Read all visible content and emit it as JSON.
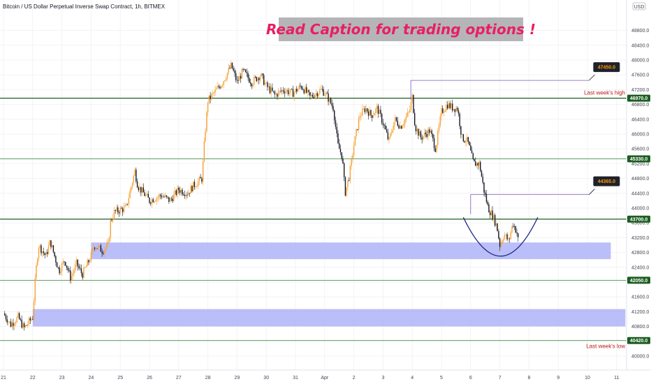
{
  "header": {
    "symbol_title": "Bitcoin / US Dollar Perpetual Inverse Swap Contract, 1h, BITMEX",
    "caption": "Read Caption for trading options !",
    "currency": "USD"
  },
  "chart_data": {
    "type": "candlestick",
    "title": "Bitcoin / US Dollar Perpetual Inverse Swap Contract, 1h, BITMEX",
    "ylim": [
      40000,
      49000
    ],
    "y_ticks": [
      40000,
      40400,
      40800,
      41200,
      41600,
      42000,
      42400,
      42800,
      43200,
      43600,
      44000,
      44400,
      44800,
      45200,
      45600,
      46000,
      46400,
      46800,
      47200,
      47600,
      48000,
      48400,
      48800
    ],
    "x_ticks": [
      "21",
      "22",
      "23",
      "24",
      "25",
      "26",
      "27",
      "28",
      "29",
      "30",
      "31",
      "Apr",
      "2",
      "3",
      "4",
      "5",
      "6",
      "7",
      "8",
      "9",
      "10",
      "11"
    ],
    "x_tick_days": [
      0,
      1,
      2,
      3,
      4,
      5,
      6,
      7,
      8,
      9,
      10,
      11,
      12,
      13,
      14,
      15,
      16,
      17,
      18,
      19,
      20,
      21
    ],
    "price_path": [
      {
        "day": 0.0,
        "price": 41150
      },
      {
        "day": 0.25,
        "price": 40850
      },
      {
        "day": 0.5,
        "price": 41050
      },
      {
        "day": 0.7,
        "price": 40750
      },
      {
        "day": 1.0,
        "price": 41050
      },
      {
        "day": 1.1,
        "price": 42200
      },
      {
        "day": 1.2,
        "price": 43000
      },
      {
        "day": 1.45,
        "price": 42700
      },
      {
        "day": 1.6,
        "price": 43100
      },
      {
        "day": 1.9,
        "price": 42300
      },
      {
        "day": 2.1,
        "price": 42600
      },
      {
        "day": 2.3,
        "price": 42100
      },
      {
        "day": 2.5,
        "price": 42500
      },
      {
        "day": 2.7,
        "price": 42200
      },
      {
        "day": 3.0,
        "price": 42700
      },
      {
        "day": 3.1,
        "price": 43000
      },
      {
        "day": 3.4,
        "price": 42850
      },
      {
        "day": 3.6,
        "price": 43000
      },
      {
        "day": 3.65,
        "price": 43600
      },
      {
        "day": 3.8,
        "price": 43900
      },
      {
        "day": 4.2,
        "price": 44000
      },
      {
        "day": 4.5,
        "price": 45000
      },
      {
        "day": 4.6,
        "price": 44600
      },
      {
        "day": 5.0,
        "price": 44200
      },
      {
        "day": 5.4,
        "price": 44350
      },
      {
        "day": 5.7,
        "price": 44200
      },
      {
        "day": 6.0,
        "price": 44500
      },
      {
        "day": 6.3,
        "price": 44400
      },
      {
        "day": 6.5,
        "price": 44600
      },
      {
        "day": 6.8,
        "price": 44800
      },
      {
        "day": 6.9,
        "price": 46000
      },
      {
        "day": 7.0,
        "price": 46900
      },
      {
        "day": 7.3,
        "price": 47200
      },
      {
        "day": 7.5,
        "price": 47400
      },
      {
        "day": 7.8,
        "price": 47850
      },
      {
        "day": 8.0,
        "price": 47400
      },
      {
        "day": 8.2,
        "price": 47700
      },
      {
        "day": 8.5,
        "price": 47400
      },
      {
        "day": 8.8,
        "price": 47600
      },
      {
        "day": 9.0,
        "price": 47300
      },
      {
        "day": 9.3,
        "price": 47050
      },
      {
        "day": 9.6,
        "price": 47200
      },
      {
        "day": 9.9,
        "price": 47100
      },
      {
        "day": 10.2,
        "price": 47300
      },
      {
        "day": 10.5,
        "price": 47000
      },
      {
        "day": 10.9,
        "price": 47200
      },
      {
        "day": 11.1,
        "price": 47000
      },
      {
        "day": 11.3,
        "price": 46700
      },
      {
        "day": 11.45,
        "price": 45700
      },
      {
        "day": 11.6,
        "price": 45400
      },
      {
        "day": 11.7,
        "price": 44400
      },
      {
        "day": 11.85,
        "price": 44900
      },
      {
        "day": 12.0,
        "price": 45700
      },
      {
        "day": 12.2,
        "price": 46500
      },
      {
        "day": 12.4,
        "price": 46700
      },
      {
        "day": 12.6,
        "price": 46500
      },
      {
        "day": 12.8,
        "price": 46700
      },
      {
        "day": 13.0,
        "price": 46300
      },
      {
        "day": 13.2,
        "price": 45800
      },
      {
        "day": 13.4,
        "price": 46400
      },
      {
        "day": 13.6,
        "price": 46200
      },
      {
        "day": 13.9,
        "price": 46600
      },
      {
        "day": 14.0,
        "price": 47000
      },
      {
        "day": 14.1,
        "price": 46200
      },
      {
        "day": 14.3,
        "price": 45900
      },
      {
        "day": 14.6,
        "price": 46100
      },
      {
        "day": 14.8,
        "price": 45600
      },
      {
        "day": 15.0,
        "price": 46600
      },
      {
        "day": 15.2,
        "price": 46800
      },
      {
        "day": 15.4,
        "price": 46700
      },
      {
        "day": 15.55,
        "price": 46700
      },
      {
        "day": 15.7,
        "price": 45900
      },
      {
        "day": 15.9,
        "price": 45800
      },
      {
        "day": 16.1,
        "price": 45200
      },
      {
        "day": 16.3,
        "price": 45200
      },
      {
        "day": 16.45,
        "price": 44500
      },
      {
        "day": 16.6,
        "price": 44000
      },
      {
        "day": 16.75,
        "price": 43800
      },
      {
        "day": 16.9,
        "price": 43500
      },
      {
        "day": 17.0,
        "price": 43000
      },
      {
        "day": 17.15,
        "price": 43300
      },
      {
        "day": 17.3,
        "price": 43100
      },
      {
        "day": 17.45,
        "price": 43600
      },
      {
        "day": 17.6,
        "price": 43300
      },
      {
        "day": 17.65,
        "price": 43000
      }
    ],
    "levels": [
      {
        "price": 46970,
        "label": "46970.0",
        "color": "#1b5e20",
        "width": 1.2
      },
      {
        "price": 45330,
        "label": "45330.0",
        "color": "#2e7d32",
        "width": 0.8
      },
      {
        "price": 43700,
        "label": "43700.0",
        "color": "#1b5e20",
        "width": 1.2
      },
      {
        "price": 42050,
        "label": "42050.0",
        "color": "#2e7d32",
        "width": 0.8
      },
      {
        "price": 40420,
        "label": "40420.0",
        "color": "#2e7d32",
        "width": 0.8
      }
    ],
    "zones": [
      {
        "from": 42620,
        "to": 43070,
        "x_start_day": 3.0,
        "x_end_day": 20.8,
        "color": "#b3b8f8"
      },
      {
        "from": 40800,
        "to": 41270,
        "x_start_day": 1.0,
        "x_end_day": 21.3,
        "color": "#b3b8f8"
      }
    ],
    "targets": [
      {
        "price": 47450,
        "label": "47450.0",
        "x_start_day": 13.95,
        "x_end_day": 20.2
      },
      {
        "price": 44365,
        "label": "44365.0",
        "x_start_day": 16.0,
        "x_end_day": 20.2
      }
    ],
    "annotations": [
      {
        "text": "Last week's high",
        "price": 46970
      },
      {
        "text": "Last week's low",
        "price": 40420
      }
    ],
    "arc": {
      "x_start_day": 15.75,
      "x_end_day": 18.3,
      "top_price": 43750,
      "bottom_price": 42700,
      "color": "#1a237e"
    },
    "colors": {
      "up": "#f7a031",
      "down": "#131722",
      "wick": "#444444",
      "label_bg": "#1b5e20",
      "target_bg": "#1e222d",
      "target_text": "#ff9800"
    }
  }
}
